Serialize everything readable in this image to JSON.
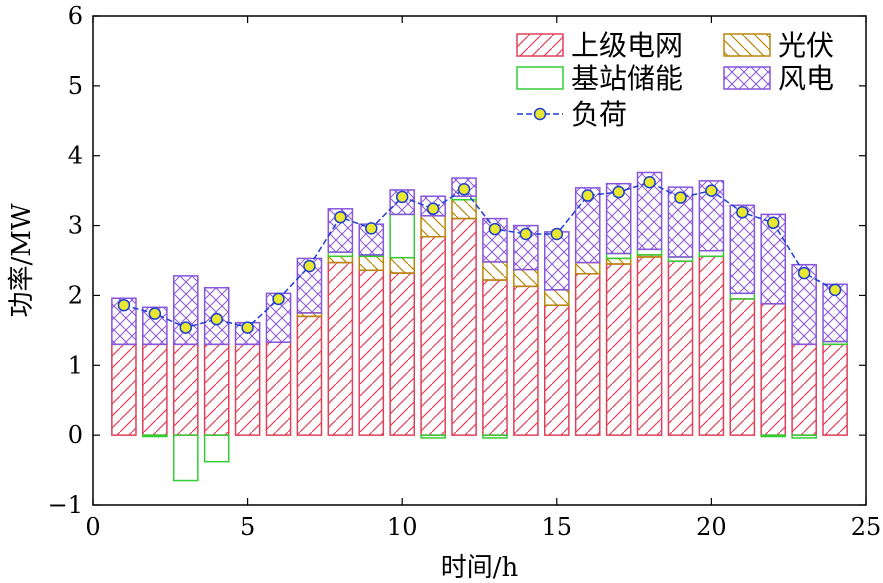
{
  "chart_data": {
    "type": "bar",
    "xlabel": "时间/h",
    "ylabel": "功率/MW",
    "xlim": [
      0,
      25
    ],
    "ylim": [
      -1,
      6
    ],
    "xticks": [
      0,
      5,
      10,
      15,
      20,
      25
    ],
    "yticks": [
      -1,
      0,
      1,
      2,
      3,
      4,
      5,
      6
    ],
    "x": [
      1,
      2,
      3,
      4,
      5,
      6,
      7,
      8,
      9,
      10,
      11,
      12,
      13,
      14,
      15,
      16,
      17,
      18,
      19,
      20,
      21,
      22,
      23,
      24
    ],
    "series": [
      {
        "name": "上级电网",
        "kind": "bar",
        "color": "#e0405a",
        "pattern": "diag",
        "values": [
          1.3,
          1.3,
          1.3,
          1.3,
          1.3,
          1.33,
          1.7,
          2.47,
          2.36,
          2.32,
          2.84,
          3.1,
          2.22,
          2.13,
          1.86,
          2.31,
          2.45,
          2.55,
          2.49,
          2.56,
          1.95,
          1.88,
          1.3,
          1.3
        ]
      },
      {
        "name": "光伏",
        "kind": "bar",
        "color": "#b8860b",
        "pattern": "backdiag",
        "values": [
          0,
          0,
          0,
          0,
          0,
          0,
          0.05,
          0.09,
          0.2,
          0.22,
          0.3,
          0.27,
          0.26,
          0.24,
          0.22,
          0.16,
          0.08,
          0.03,
          0,
          0,
          0,
          0,
          0,
          0
        ]
      },
      {
        "name": "基站储能",
        "kind": "bar",
        "color": "#33cc33",
        "pattern": "none",
        "values": [
          0,
          -0.02,
          -0.65,
          -0.38,
          0,
          0,
          0,
          0.06,
          0.02,
          0.62,
          -0.04,
          0.05,
          -0.04,
          0,
          0,
          0,
          0.07,
          0.08,
          0.06,
          0.08,
          0.08,
          -0.02,
          -0.04,
          0.04
        ]
      },
      {
        "name": "风电",
        "kind": "bar",
        "color": "#8855dd",
        "pattern": "cross",
        "values": [
          0.66,
          0.53,
          0.98,
          0.81,
          0.31,
          0.7,
          0.78,
          0.62,
          0.44,
          0.35,
          0.28,
          0.26,
          0.62,
          0.63,
          0.83,
          1.07,
          1.0,
          1.1,
          1.0,
          1.0,
          1.26,
          1.28,
          1.14,
          0.82
        ]
      },
      {
        "name": "负荷",
        "kind": "line",
        "color": "#1f3fd0",
        "marker_color": "#e8e830",
        "values": [
          1.86,
          1.74,
          1.54,
          1.66,
          1.54,
          1.95,
          2.42,
          3.12,
          2.96,
          3.41,
          3.24,
          3.52,
          2.95,
          2.88,
          2.88,
          3.43,
          3.48,
          3.62,
          3.4,
          3.5,
          3.19,
          3.04,
          2.32,
          2.08
        ]
      }
    ],
    "legend_position": "top-right"
  }
}
